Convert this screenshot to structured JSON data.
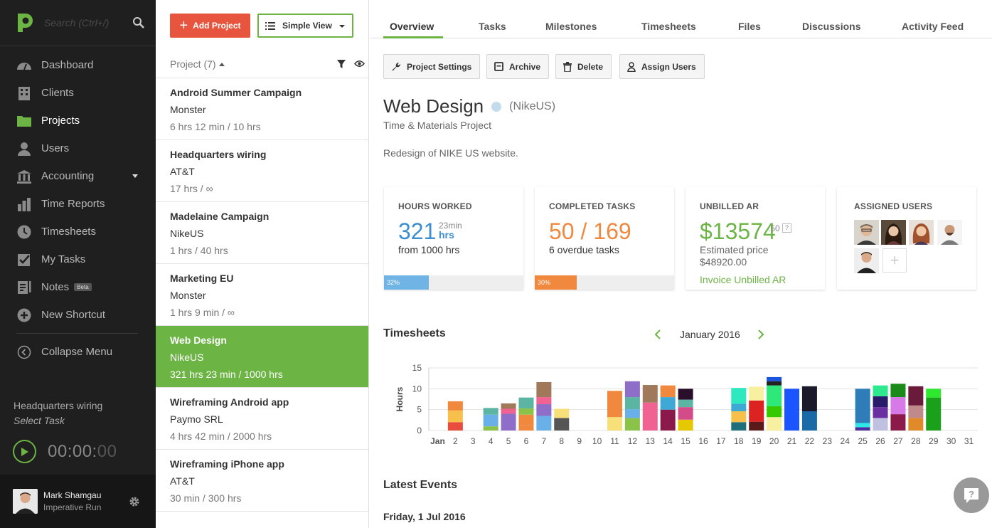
{
  "sidebar": {
    "search_placeholder": "Search (Ctrl+/)",
    "items": [
      {
        "label": "Dashboard"
      },
      {
        "label": "Clients"
      },
      {
        "label": "Projects"
      },
      {
        "label": "Users"
      },
      {
        "label": "Accounting"
      },
      {
        "label": "Time Reports"
      },
      {
        "label": "Timesheets"
      },
      {
        "label": "My Tasks"
      },
      {
        "label": "Notes",
        "badge": "Beta"
      },
      {
        "label": "New Shortcut"
      }
    ],
    "collapse_label": "Collapse Menu",
    "running_project": "Headquarters wiring",
    "running_task": "Select Task",
    "timer_main": "00:00:",
    "timer_sec": "00",
    "user_name": "Mark Shamgau",
    "user_company": "Imperative Run"
  },
  "projects_panel": {
    "add_label": "Add Project",
    "view_label": "Simple View",
    "list_header": "Project (7)",
    "projects": [
      {
        "name": "Android Summer Campaign",
        "client": "Monster",
        "hours": "6 hrs 12 min / 10 hrs"
      },
      {
        "name": "Headquarters wiring",
        "client": "AT&T",
        "hours": "17 hrs / ∞"
      },
      {
        "name": "Madelaine Campaign",
        "client": "NikeUS",
        "hours": "1 hrs / 40 hrs"
      },
      {
        "name": "Marketing EU",
        "client": "Monster",
        "hours": "1 hrs 9 min / ∞"
      },
      {
        "name": "Web Design",
        "client": "NikeUS",
        "hours": "321 hrs 23 min / 1000 hrs"
      },
      {
        "name": "Wireframing Android app",
        "client": "Paymo SRL",
        "hours": "4 hrs 42 min / 2000 hrs"
      },
      {
        "name": "Wireframing iPhone app",
        "client": "AT&T",
        "hours": "30 min / 300 hrs"
      }
    ]
  },
  "tabs": [
    "Overview",
    "Tasks",
    "Milestones",
    "Timesheets",
    "Files",
    "Discussions",
    "Activity Feed"
  ],
  "actions": [
    "Project Settings",
    "Archive",
    "Delete",
    "Assign Users"
  ],
  "project": {
    "title": "Web Design",
    "client": "(NikeUS)",
    "type": "Time & Materials Project",
    "description": "Redesign of NIKE US website."
  },
  "cards": {
    "hours": {
      "label": "HOURS WORKED",
      "value": "321",
      "minutes": "23min",
      "unit": "hrs",
      "sub": "from 1000 hrs",
      "progress_label": "32%",
      "progress": 32
    },
    "tasks": {
      "label": "COMPLETED TASKS",
      "value": "50 / 169",
      "sub": "6 overdue tasks",
      "progress_label": "30%",
      "progress": 30
    },
    "unbilled": {
      "label": "UNBILLED AR",
      "value": "$13574",
      "cents": ".50",
      "help": "?",
      "sub": "Estimated price",
      "estimate": "$48920.00",
      "link": "Invoice Unbilled AR"
    },
    "users": {
      "label": "ASSIGNED USERS",
      "add": "+"
    }
  },
  "timesheets": {
    "title": "Timesheets",
    "month": "January 2016"
  },
  "chart_data": {
    "type": "bar",
    "ylabel": "Hours",
    "ylim": [
      0,
      15
    ],
    "yticks": [
      0,
      5,
      10,
      15
    ],
    "categories": [
      "Jan",
      "2",
      "3",
      "4",
      "5",
      "6",
      "7",
      "8",
      "9",
      "10",
      "11",
      "12",
      "13",
      "14",
      "15",
      "16",
      "17",
      "18",
      "19",
      "20",
      "21",
      "22",
      "23",
      "24",
      "25",
      "26",
      "27",
      "28",
      "29",
      "30",
      "31"
    ],
    "stacks": [
      [],
      [
        [
          2,
          "#e74c3c"
        ],
        [
          2.8,
          "#f7c04a"
        ],
        [
          2.2,
          "#f0883e"
        ]
      ],
      [],
      [
        [
          1,
          "#8bc34a"
        ],
        [
          2.8,
          "#6ab0e8"
        ],
        [
          1.6,
          "#5bb5a2"
        ]
      ],
      [
        [
          4,
          "#8e6ec8"
        ],
        [
          1.2,
          "#f06292"
        ],
        [
          1.3,
          "#a0785a"
        ]
      ],
      [
        [
          1.3,
          "#f0883e"
        ],
        [
          2.5,
          "#f0883e"
        ],
        [
          1.5,
          "#8bc34a"
        ],
        [
          2.6,
          "#5bb5a2"
        ]
      ],
      [
        [
          3.5,
          "#6ab0e8"
        ],
        [
          2.8,
          "#8e6ec8"
        ],
        [
          1.7,
          "#f06292"
        ],
        [
          3.6,
          "#a0785a"
        ]
      ],
      [
        [
          3,
          "#555555"
        ],
        [
          2.2,
          "#f7e07a"
        ]
      ],
      [],
      [],
      [
        [
          3.2,
          "#f7e07a"
        ],
        [
          6.3,
          "#f0883e"
        ]
      ],
      [
        [
          3,
          "#8bc34a"
        ],
        [
          2.1,
          "#6ab0e8"
        ],
        [
          2.9,
          "#5bb5a2"
        ],
        [
          3.8,
          "#8e6ec8"
        ]
      ],
      [
        [
          6.7,
          "#f06292"
        ],
        [
          4.2,
          "#a0785a"
        ]
      ],
      [
        [
          5,
          "#8b1a4a"
        ],
        [
          3,
          "#3fa9d6"
        ],
        [
          2.8,
          "#f0883e"
        ]
      ],
      [
        [
          2.6,
          "#e6c800"
        ],
        [
          3,
          "#d44b8a"
        ],
        [
          1.8,
          "#5bb5a2"
        ],
        [
          2.6,
          "#2a0f2a"
        ]
      ],
      [],
      [],
      [
        [
          2,
          "#1f6f7a"
        ],
        [
          2.6,
          "#f7c04a"
        ],
        [
          1.8,
          "#3fa9d6"
        ],
        [
          3.8,
          "#2ee8c0"
        ]
      ],
      [
        [
          2.1,
          "#5a1a1a"
        ],
        [
          5.1,
          "#dd2222"
        ],
        [
          3.3,
          "#f7f0a0"
        ]
      ],
      [
        [
          3.2,
          "#f7f0a0"
        ],
        [
          2.6,
          "#36c900"
        ],
        [
          5,
          "#2ee87a"
        ],
        [
          1,
          "#222222"
        ],
        [
          1,
          "#1a55dd"
        ]
      ],
      [
        [
          10,
          "#1a55ff"
        ]
      ],
      [
        [
          4.6,
          "#1a6aa8"
        ],
        [
          6,
          "#1a1a2a"
        ]
      ],
      [],
      [],
      [
        [
          0.8,
          "#4b2fa0"
        ],
        [
          1,
          "#2ee8e8"
        ],
        [
          8.2,
          "#2e7db8"
        ]
      ],
      [
        [
          3,
          "#c0c0e0"
        ],
        [
          2.6,
          "#6a2fa0"
        ],
        [
          2.6,
          "#2a1a6a"
        ],
        [
          2.6,
          "#2ee890"
        ]
      ],
      [
        [
          3.9,
          "#8b1a4a"
        ],
        [
          4.1,
          "#d77ae8"
        ],
        [
          3.2,
          "#1a8a1a"
        ]
      ],
      [
        [
          3,
          "#e08a2a"
        ],
        [
          3,
          "#c08a8a"
        ],
        [
          4.6,
          "#6a1a3a"
        ]
      ],
      [
        [
          7.9,
          "#1aa01a"
        ],
        [
          2.1,
          "#2ee82e"
        ]
      ],
      [],
      []
    ]
  },
  "latest_events": {
    "title": "Latest Events",
    "first_date": "Friday, 1 Jul 2016"
  },
  "colors": {
    "accent_green": "#6cb545",
    "accent_red": "#e8553e",
    "blue": "#3b8fd1",
    "orange": "#f0883e"
  }
}
